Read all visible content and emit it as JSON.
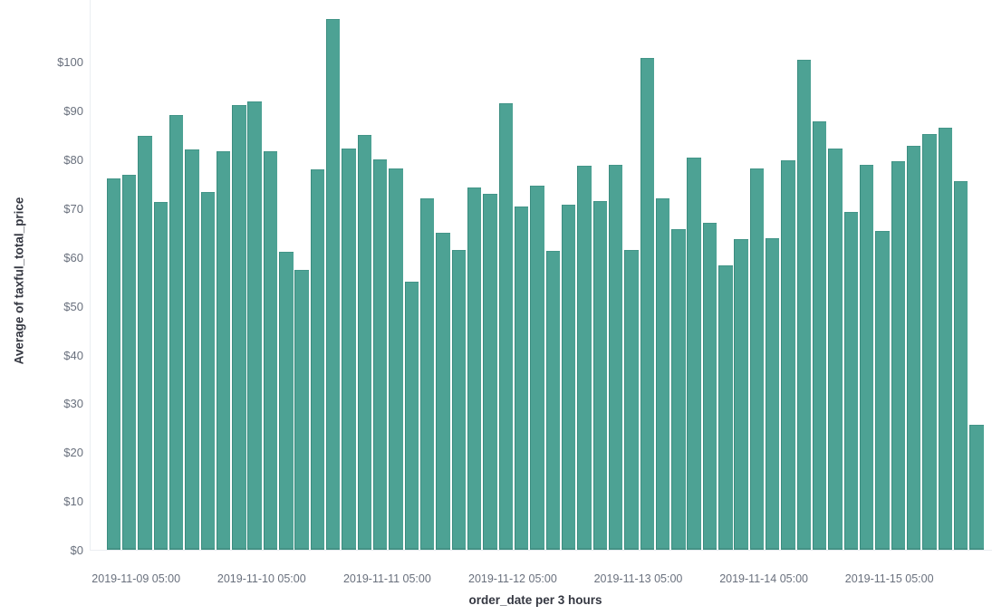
{
  "page": {
    "background": "#ffffff"
  },
  "chart_data": {
    "type": "bar",
    "title": "",
    "xlabel": "order_date per 3 hours",
    "ylabel": "Average of taxful_total_price",
    "legend_position": "none",
    "grid": "off",
    "bucket_interval_hours": 3,
    "ylim": [
      0,
      111
    ],
    "y_ticks": [
      {
        "value": 0,
        "label": "$0"
      },
      {
        "value": 10,
        "label": "$10"
      },
      {
        "value": 20,
        "label": "$20"
      },
      {
        "value": 30,
        "label": "$30"
      },
      {
        "value": 40,
        "label": "$40"
      },
      {
        "value": 50,
        "label": "$50"
      },
      {
        "value": 60,
        "label": "$60"
      },
      {
        "value": 70,
        "label": "$70"
      },
      {
        "value": 80,
        "label": "$80"
      },
      {
        "value": 90,
        "label": "$90"
      },
      {
        "value": 100,
        "label": "$100"
      }
    ],
    "x_ticks": [
      {
        "label": "2019-11-09 05:00",
        "bar_boundary_index": 2
      },
      {
        "label": "2019-11-10 05:00",
        "bar_boundary_index": 10
      },
      {
        "label": "2019-11-11 05:00",
        "bar_boundary_index": 18
      },
      {
        "label": "2019-11-12 05:00",
        "bar_boundary_index": 26
      },
      {
        "label": "2019-11-13 05:00",
        "bar_boundary_index": 34
      },
      {
        "label": "2019-11-14 05:00",
        "bar_boundary_index": 42
      },
      {
        "label": "2019-11-15 05:00",
        "bar_boundary_index": 50
      }
    ],
    "x": [
      "2019-11-08 23:00",
      "2019-11-09 02:00",
      "2019-11-09 05:00",
      "2019-11-09 08:00",
      "2019-11-09 11:00",
      "2019-11-09 14:00",
      "2019-11-09 17:00",
      "2019-11-09 20:00",
      "2019-11-09 23:00",
      "2019-11-10 02:00",
      "2019-11-10 05:00",
      "2019-11-10 08:00",
      "2019-11-10 11:00",
      "2019-11-10 14:00",
      "2019-11-10 17:00",
      "2019-11-10 20:00",
      "2019-11-10 23:00",
      "2019-11-11 02:00",
      "2019-11-11 05:00",
      "2019-11-11 08:00",
      "2019-11-11 11:00",
      "2019-11-11 14:00",
      "2019-11-11 17:00",
      "2019-11-11 20:00",
      "2019-11-11 23:00",
      "2019-11-12 02:00",
      "2019-11-12 05:00",
      "2019-11-12 08:00",
      "2019-11-12 11:00",
      "2019-11-12 14:00",
      "2019-11-12 17:00",
      "2019-11-12 20:00",
      "2019-11-12 23:00",
      "2019-11-13 02:00",
      "2019-11-13 05:00",
      "2019-11-13 08:00",
      "2019-11-13 11:00",
      "2019-11-13 14:00",
      "2019-11-13 17:00",
      "2019-11-13 20:00",
      "2019-11-13 23:00",
      "2019-11-14 02:00",
      "2019-11-14 05:00",
      "2019-11-14 08:00",
      "2019-11-14 11:00",
      "2019-11-14 14:00",
      "2019-11-14 17:00",
      "2019-11-14 20:00",
      "2019-11-14 23:00",
      "2019-11-15 02:00",
      "2019-11-15 05:00",
      "2019-11-15 08:00",
      "2019-11-15 11:00",
      "2019-11-15 14:00",
      "2019-11-15 17:00",
      "2019-11-15 20:00"
    ],
    "values": [
      76.1,
      76.9,
      84.9,
      71.3,
      89.1,
      82.1,
      73.3,
      81.7,
      91.2,
      91.9,
      81.7,
      61.0,
      57.3,
      77.9,
      108.7,
      82.2,
      85.1,
      80.1,
      78.2,
      55.0,
      72.0,
      65.0,
      61.5,
      74.3,
      72.9,
      91.6,
      70.4,
      74.7,
      61.2,
      70.7,
      78.7,
      71.5,
      78.9,
      61.5,
      100.8,
      72.0,
      65.7,
      80.3,
      67.0,
      58.3,
      63.6,
      78.1,
      63.9,
      79.9,
      100.4,
      87.8,
      82.2,
      69.2,
      78.9,
      65.3,
      79.6,
      82.8,
      85.2,
      86.6,
      75.6,
      25.6
    ],
    "colors": {
      "bar_fill": "#4da294",
      "bar_edge": "#3b8c7f",
      "axis_line": "#ebeef2",
      "tick_label": "#69707d",
      "axis_title": "#343741"
    }
  }
}
